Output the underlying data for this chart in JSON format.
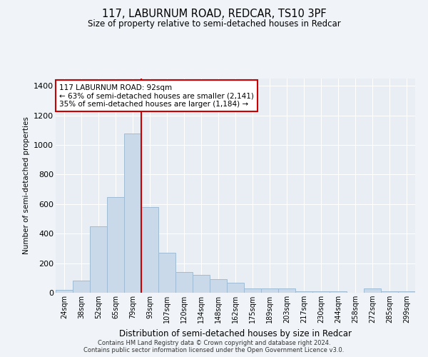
{
  "title": "117, LABURNUM ROAD, REDCAR, TS10 3PF",
  "subtitle": "Size of property relative to semi-detached houses in Redcar",
  "xlabel": "Distribution of semi-detached houses by size in Redcar",
  "ylabel": "Number of semi-detached properties",
  "categories": [
    "24sqm",
    "38sqm",
    "52sqm",
    "65sqm",
    "79sqm",
    "93sqm",
    "107sqm",
    "120sqm",
    "134sqm",
    "148sqm",
    "162sqm",
    "175sqm",
    "189sqm",
    "203sqm",
    "217sqm",
    "230sqm",
    "244sqm",
    "258sqm",
    "272sqm",
    "285sqm",
    "299sqm"
  ],
  "values": [
    20,
    80,
    450,
    650,
    1080,
    580,
    270,
    140,
    120,
    90,
    70,
    30,
    30,
    30,
    10,
    10,
    10,
    0,
    30,
    10,
    10
  ],
  "bar_color": "#c9d9ea",
  "bar_edgecolor": "#a0bcd4",
  "highlight_color": "#cc0000",
  "property_line_x": 5,
  "annotation_line1": "117 LABURNUM ROAD: 92sqm",
  "annotation_line2": "← 63% of semi-detached houses are smaller (2,141)",
  "annotation_line3": "35% of semi-detached houses are larger (1,184) →",
  "annotation_box_edgecolor": "#cc0000",
  "ylim": [
    0,
    1450
  ],
  "yticks": [
    0,
    200,
    400,
    600,
    800,
    1000,
    1200,
    1400
  ],
  "footer1": "Contains HM Land Registry data © Crown copyright and database right 2024.",
  "footer2": "Contains public sector information licensed under the Open Government Licence v3.0.",
  "bg_color": "#f0f4f8",
  "plot_bg_color": "#e8eef4"
}
